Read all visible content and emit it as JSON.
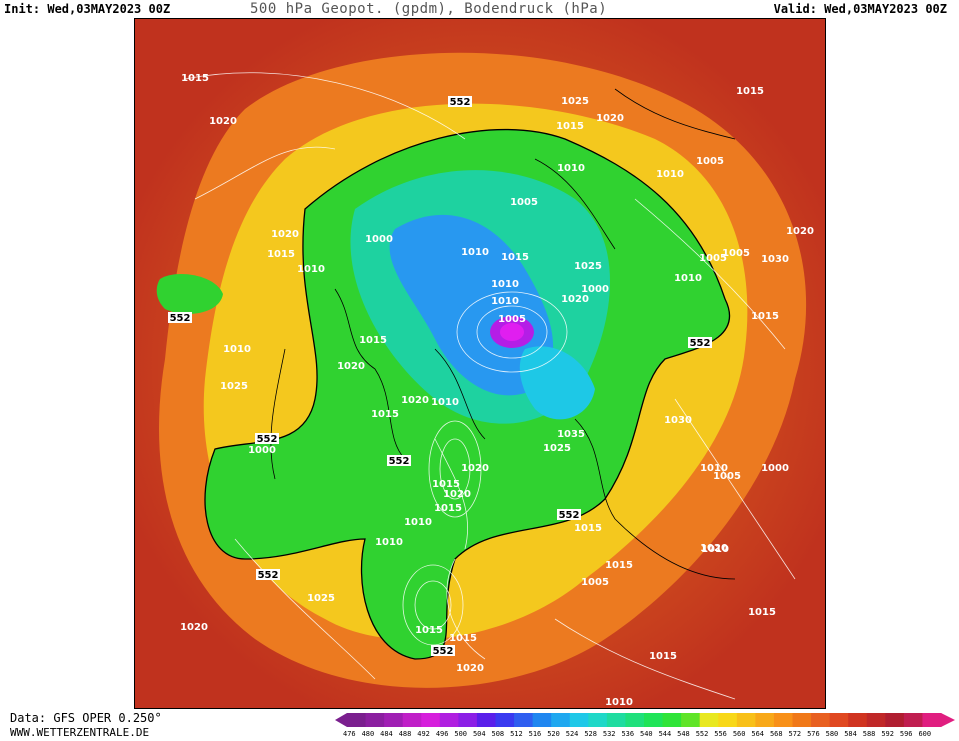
{
  "header": {
    "init": "Init: Wed,03MAY2023 00Z",
    "title": "500 hPa Geopot. (gpdm), Bodendruck (hPa)",
    "valid": "Valid: Wed,03MAY2023 00Z"
  },
  "footer": {
    "source": "Data: GFS OPER 0.250°",
    "site": "WWW.WETTERZENTRALE.DE"
  },
  "colorbar": {
    "ticks": [
      "476",
      "480",
      "484",
      "488",
      "492",
      "496",
      "500",
      "504",
      "508",
      "512",
      "516",
      "520",
      "524",
      "528",
      "532",
      "536",
      "540",
      "544",
      "548",
      "552",
      "556",
      "560",
      "564",
      "568",
      "572",
      "576",
      "580",
      "584",
      "588",
      "592",
      "596",
      "600"
    ],
    "colors": [
      "#7a1f8e",
      "#8b1fa0",
      "#a01fb4",
      "#c01fc8",
      "#d61fdc",
      "#b01fe0",
      "#8c1fe6",
      "#5a1fea",
      "#3a3af0",
      "#2f5ef0",
      "#1f86f0",
      "#1fa8f0",
      "#1fc8e8",
      "#1fd8c8",
      "#1fdca0",
      "#1fe07c",
      "#1fe458",
      "#2fe438",
      "#60e428",
      "#e8e820",
      "#f8d818",
      "#f8c018",
      "#f8a818",
      "#f89018",
      "#f07818",
      "#e86020",
      "#e04820",
      "#d03420",
      "#c02828",
      "#b01e30",
      "#c01e50",
      "#e01e80"
    ]
  },
  "map": {
    "background_colors": {
      "high": "#c8321e",
      "orange": "#e8641e",
      "yellow": "#f0c81e",
      "green": "#28d228",
      "teal": "#1ed2b4",
      "blue": "#1e8cf0",
      "purple": "#b41ee6"
    },
    "contour_552_labels": [
      "552",
      "552",
      "552",
      "552",
      "552",
      "552",
      "552",
      "552"
    ],
    "pressure_labels": [
      "1015",
      "1020",
      "1025",
      "1015",
      "1020",
      "1015",
      "1005",
      "1010",
      "1010",
      "1005",
      "1000",
      "1020",
      "1015",
      "1010",
      "1010",
      "1015",
      "1025",
      "1005",
      "1020",
      "1030",
      "1010",
      "1020",
      "1000",
      "1010",
      "1005",
      "1010",
      "1005",
      "1015",
      "1010",
      "1020",
      "1025",
      "1015",
      "1020",
      "1010",
      "1030",
      "1035",
      "1025",
      "1020",
      "1015",
      "1020",
      "1015",
      "1010",
      "1005",
      "1000",
      "1000",
      "1010",
      "1015",
      "1020",
      "1010",
      "1015",
      "1005",
      "1015",
      "1025",
      "1020",
      "1015",
      "1015",
      "1020",
      "1015",
      "1010",
      "1010",
      "1015"
    ]
  }
}
